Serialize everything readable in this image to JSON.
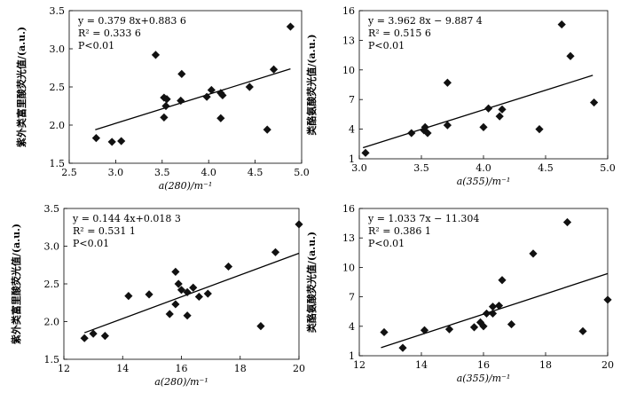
{
  "chart_data": [
    {
      "id": "panel-a",
      "type": "scatter",
      "ylabel": "紫外类富里酸荧光值/(a.u.)",
      "xlabel": "a(280)/m⁻¹",
      "xlim": [
        2.5,
        5.0
      ],
      "ylim": [
        1.5,
        3.5
      ],
      "x_ticks": [
        "2.5",
        "3.0",
        "3.5",
        "4.0",
        "4.5",
        "5.0"
      ],
      "y_ticks": [
        "1.5",
        "2.0",
        "2.5",
        "3.0",
        "3.5"
      ],
      "annotation": [
        "y = 0.379 8x+0.883 6",
        "R² = 0.333 6",
        "P<0.01"
      ],
      "fit": {
        "slope": 0.3798,
        "intercept": 0.8836,
        "x_range": [
          2.78,
          4.88
        ]
      },
      "points": [
        [
          2.79,
          1.83
        ],
        [
          2.96,
          1.78
        ],
        [
          3.06,
          1.79
        ],
        [
          3.43,
          2.92
        ],
        [
          3.52,
          2.1
        ],
        [
          3.52,
          2.36
        ],
        [
          3.54,
          2.25
        ],
        [
          3.55,
          2.34
        ],
        [
          3.7,
          2.32
        ],
        [
          3.71,
          2.67
        ],
        [
          3.98,
          2.37
        ],
        [
          4.03,
          2.46
        ],
        [
          4.13,
          2.09
        ],
        [
          4.13,
          2.42
        ],
        [
          4.15,
          2.39
        ],
        [
          4.44,
          2.5
        ],
        [
          4.63,
          1.94
        ],
        [
          4.7,
          2.73
        ],
        [
          4.88,
          3.29
        ]
      ]
    },
    {
      "id": "panel-b",
      "type": "scatter",
      "ylabel": "类酪氨酸荧光值/(a.u.)",
      "xlabel": "a(355)/m⁻¹",
      "xlim": [
        3.0,
        5.0
      ],
      "ylim": [
        1,
        16
      ],
      "x_ticks": [
        "3.0",
        "3.5",
        "4.0",
        "4.5",
        "5.0"
      ],
      "y_ticks": [
        "1",
        "4",
        "7",
        "10",
        "13",
        "16"
      ],
      "annotation": [
        "y = 3.962 8x − 9.887 4",
        "R² = 0.515 6",
        "P<0.01"
      ],
      "fit": {
        "slope": 3.9628,
        "intercept": -9.8874,
        "x_range": [
          3.03,
          4.88
        ]
      },
      "points": [
        [
          3.05,
          1.6
        ],
        [
          3.42,
          3.6
        ],
        [
          3.52,
          3.9
        ],
        [
          3.53,
          4.2
        ],
        [
          3.55,
          3.6
        ],
        [
          3.71,
          8.7
        ],
        [
          3.71,
          4.4
        ],
        [
          4.0,
          4.2
        ],
        [
          4.04,
          6.1
        ],
        [
          4.13,
          5.3
        ],
        [
          4.15,
          6.0
        ],
        [
          4.45,
          4.0
        ],
        [
          4.63,
          14.6
        ],
        [
          4.7,
          11.4
        ],
        [
          4.89,
          6.7
        ]
      ]
    },
    {
      "id": "panel-c",
      "type": "scatter",
      "ylabel": "紫外类富里酸荧光值/(a.u.)",
      "xlabel": "a(280)/m⁻¹",
      "xlim": [
        12,
        20
      ],
      "ylim": [
        1.5,
        3.5
      ],
      "x_ticks": [
        "12",
        "14",
        "16",
        "18",
        "20"
      ],
      "y_ticks": [
        "1.5",
        "2.0",
        "2.5",
        "3.0",
        "3.5"
      ],
      "annotation": [
        "y = 0.144 4x+0.018 3",
        "R² = 0.531 1",
        "P<0.01"
      ],
      "fit": {
        "slope": 0.1444,
        "intercept": 0.0183,
        "x_range": [
          12.7,
          20.0
        ]
      },
      "points": [
        [
          12.7,
          1.78
        ],
        [
          13.0,
          1.84
        ],
        [
          13.4,
          1.81
        ],
        [
          14.2,
          2.34
        ],
        [
          14.9,
          2.36
        ],
        [
          15.6,
          2.1
        ],
        [
          15.8,
          2.66
        ],
        [
          15.8,
          2.23
        ],
        [
          15.9,
          2.5
        ],
        [
          16.0,
          2.42
        ],
        [
          16.2,
          2.39
        ],
        [
          16.2,
          2.08
        ],
        [
          16.4,
          2.45
        ],
        [
          16.6,
          2.33
        ],
        [
          16.9,
          2.37
        ],
        [
          17.6,
          2.73
        ],
        [
          18.7,
          1.94
        ],
        [
          19.2,
          2.92
        ],
        [
          20.0,
          3.29
        ]
      ]
    },
    {
      "id": "panel-d",
      "type": "scatter",
      "ylabel": "类酪氨酸荧光值/(a.u.)",
      "xlabel": "a(355)/m⁻¹",
      "xlim": [
        12,
        20
      ],
      "ylim": [
        1,
        16
      ],
      "x_ticks": [
        "12",
        "14",
        "16",
        "18",
        "20"
      ],
      "y_ticks": [
        "1",
        "4",
        "7",
        "10",
        "13",
        "16"
      ],
      "annotation": [
        "y = 1.033 7x − 11.304",
        "R² = 0.386 1",
        "P<0.01"
      ],
      "fit": {
        "slope": 1.0337,
        "intercept": -11.304,
        "x_range": [
          12.7,
          20.0
        ]
      },
      "points": [
        [
          12.8,
          3.4
        ],
        [
          13.4,
          1.8
        ],
        [
          14.1,
          3.6
        ],
        [
          14.9,
          3.7
        ],
        [
          15.7,
          3.9
        ],
        [
          15.9,
          4.4
        ],
        [
          16.0,
          4.0
        ],
        [
          16.1,
          5.3
        ],
        [
          16.3,
          5.3
        ],
        [
          16.3,
          6.0
        ],
        [
          16.5,
          6.1
        ],
        [
          16.6,
          8.7
        ],
        [
          16.9,
          4.2
        ],
        [
          17.6,
          11.4
        ],
        [
          18.7,
          14.6
        ],
        [
          19.2,
          3.5
        ],
        [
          20.0,
          6.7
        ]
      ]
    }
  ]
}
